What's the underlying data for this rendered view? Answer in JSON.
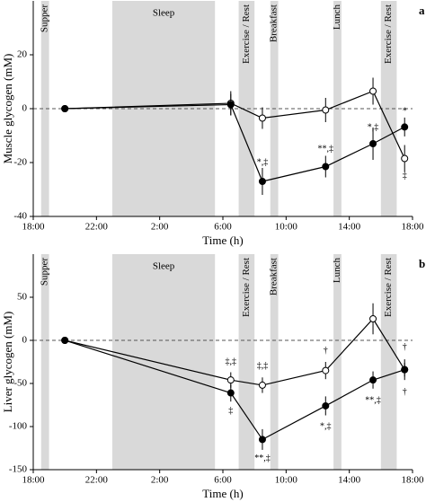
{
  "chart_data": [
    {
      "type": "line",
      "panel": "a",
      "xlabel": "Time (h)",
      "ylabel": "Muscle glycogen (mM)",
      "xlim": [
        18,
        42
      ],
      "xticks": [
        {
          "value": 18,
          "label": "18:00"
        },
        {
          "value": 22,
          "label": "22:00"
        },
        {
          "value": 26,
          "label": "2:00"
        },
        {
          "value": 30,
          "label": "6:00"
        },
        {
          "value": 34,
          "label": "10:00"
        },
        {
          "value": 38,
          "label": "14:00"
        },
        {
          "value": 42,
          "label": "18:00"
        }
      ],
      "ylim": [
        -40,
        40
      ],
      "yticks": [
        -40,
        -20,
        0,
        20
      ],
      "hline": 0,
      "regions": [
        {
          "label": "Supper",
          "start": 18.5,
          "end": 19
        },
        {
          "label": "Sleep",
          "start": 23,
          "end": 29.5
        },
        {
          "label": "Exercise / Rest",
          "start": 31,
          "end": 32
        },
        {
          "label": "Breakfast",
          "start": 33,
          "end": 33.5
        },
        {
          "label": "Lunch",
          "start": 37,
          "end": 37.5
        },
        {
          "label": "Exercise / Rest",
          "start": 40,
          "end": 41
        }
      ],
      "x": [
        20,
        30.5,
        32.5,
        36.5,
        39.5,
        41.5
      ],
      "series": [
        {
          "fill": "#ffffff",
          "values": [
            0,
            2,
            -3.5,
            -0.5,
            6.5,
            -18.5
          ],
          "errors": [
            null,
            4.5,
            4,
            4.5,
            5,
            5
          ]
        },
        {
          "fill": "#000000",
          "values": [
            0,
            1.5,
            -27,
            -21.5,
            -13,
            -6.8
          ],
          "errors": [
            null,
            4,
            5,
            4,
            6,
            3.5
          ]
        }
      ],
      "annotations": [
        {
          "text": "*,‡",
          "x": 32.5,
          "y": -20
        },
        {
          "text": "**,‡",
          "x": 36.5,
          "y": -15
        },
        {
          "text": "*,‡",
          "x": 39.5,
          "y": -7
        },
        {
          "text": "*",
          "x": 41.5,
          "y": -1
        },
        {
          "text": "‡",
          "x": 41.5,
          "y": -25
        }
      ]
    },
    {
      "type": "line",
      "panel": "b",
      "xlabel": "Time (h)",
      "ylabel": "Liver glycogen (mM)",
      "xlim": [
        18,
        42
      ],
      "xticks": [
        {
          "value": 18,
          "label": "18:00"
        },
        {
          "value": 22,
          "label": "22:00"
        },
        {
          "value": 26,
          "label": "2:00"
        },
        {
          "value": 30,
          "label": "6:00"
        },
        {
          "value": 34,
          "label": "10:00"
        },
        {
          "value": 38,
          "label": "14:00"
        },
        {
          "value": 42,
          "label": "18:00"
        }
      ],
      "ylim": [
        -150,
        100
      ],
      "yticks": [
        -150,
        -100,
        -50,
        0,
        50
      ],
      "hline": 0,
      "regions": [
        {
          "label": "Supper",
          "start": 18.5,
          "end": 19
        },
        {
          "label": "Sleep",
          "start": 23,
          "end": 29.5
        },
        {
          "label": "Exercise / Rest",
          "start": 31,
          "end": 32
        },
        {
          "label": "Breakfast",
          "start": 33,
          "end": 33.5
        },
        {
          "label": "Lunch",
          "start": 37,
          "end": 37.5
        },
        {
          "label": "Exercise / Rest",
          "start": 40,
          "end": 41
        }
      ],
      "x": [
        20,
        30.5,
        32.5,
        36.5,
        39.5,
        41.5
      ],
      "series": [
        {
          "fill": "#ffffff",
          "values": [
            0,
            -46,
            -52,
            -35,
            25,
            -34
          ],
          "errors": [
            null,
            9,
            9,
            10,
            18,
            12
          ]
        },
        {
          "fill": "#000000",
          "values": [
            0,
            -61,
            -115,
            -76,
            -46,
            -34
          ],
          "errors": [
            null,
            10,
            12,
            11,
            10,
            8
          ]
        }
      ],
      "annotations": [
        {
          "text": "‡,‡",
          "x": 30.5,
          "y": -25
        },
        {
          "text": "‡",
          "x": 30.5,
          "y": -82
        },
        {
          "text": "‡,‡",
          "x": 32.5,
          "y": -30
        },
        {
          "text": "**,‡",
          "x": 32.5,
          "y": -137
        },
        {
          "text": "†",
          "x": 36.5,
          "y": -12
        },
        {
          "text": "*,‡",
          "x": 36.5,
          "y": -100
        },
        {
          "text": "**,‡",
          "x": 39.5,
          "y": -70
        },
        {
          "text": "†",
          "x": 41.5,
          "y": -8
        },
        {
          "text": "†",
          "x": 41.5,
          "y": -60
        }
      ]
    }
  ]
}
